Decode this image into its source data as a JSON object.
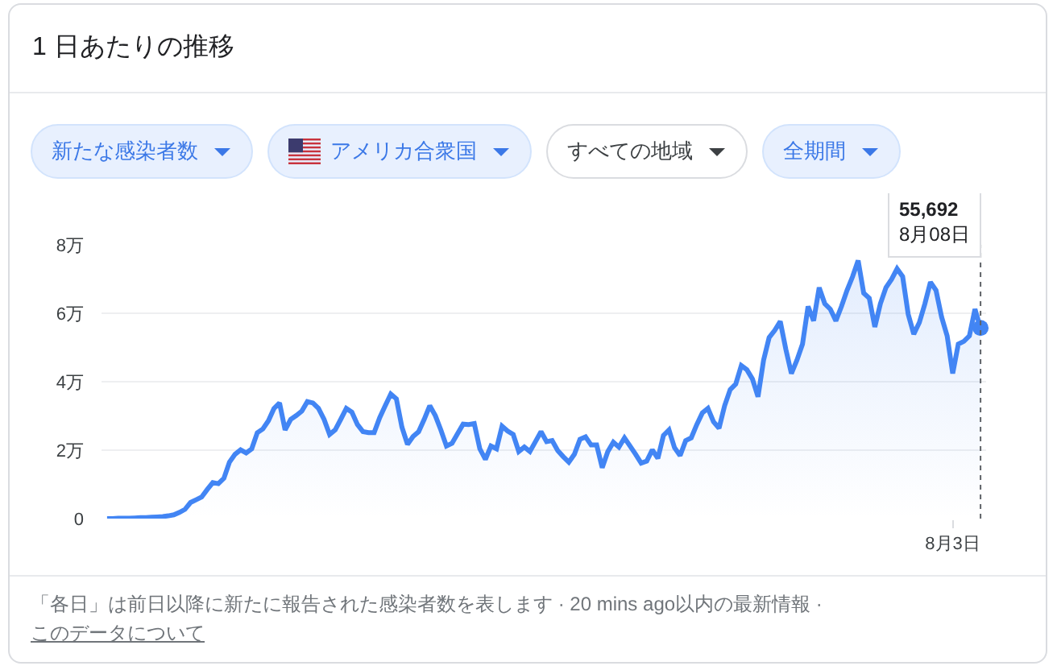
{
  "chart_data": {
    "type": "area",
    "title": "1 日あたりの推移",
    "categories": [
      null,
      null,
      null,
      null,
      null,
      null,
      null,
      null,
      null,
      null,
      null,
      null,
      null,
      null,
      null,
      null,
      null,
      null,
      null,
      null,
      null,
      null,
      null,
      null,
      null,
      null,
      null,
      null,
      null,
      null,
      null,
      null,
      null,
      null,
      null,
      null,
      null,
      null,
      null,
      null,
      null,
      null,
      null,
      null,
      null,
      null,
      null,
      null,
      null,
      null,
      null,
      null,
      null,
      null,
      null,
      null,
      null,
      null,
      null,
      null,
      null,
      null,
      null,
      null,
      null,
      null,
      null,
      null,
      null,
      null,
      null,
      null,
      null,
      null,
      null,
      null,
      null,
      null,
      null,
      null,
      null,
      null,
      null,
      null,
      null,
      null,
      null,
      null,
      null,
      null,
      null,
      null,
      null,
      null,
      null,
      null,
      null,
      null,
      null,
      null,
      null,
      null,
      null,
      null,
      null,
      null,
      null,
      null,
      null,
      null,
      null,
      null,
      null,
      null,
      null,
      null,
      null,
      null,
      null,
      null,
      null,
      null,
      null,
      null,
      null,
      null,
      null,
      null,
      null,
      null,
      null,
      null,
      null,
      null,
      null,
      null,
      null,
      null,
      null,
      null,
      null,
      null,
      null,
      null,
      null,
      null,
      null,
      null,
      null,
      null,
      null,
      null,
      "8月3日",
      null,
      null,
      null,
      null,
      null
    ],
    "series": [
      {
        "color": "#4285f4",
        "values": [
          0,
          0,
          0.01,
          0.01,
          0.01,
          0.02,
          0.03,
          0.03,
          0.04,
          0.05,
          0.06,
          0.08,
          0.11,
          0.18,
          0.27,
          0.47,
          0.55,
          0.63,
          0.85,
          1.05,
          1.02,
          1.18,
          1.65,
          1.88,
          2.01,
          1.92,
          2.04,
          2.51,
          2.62,
          2.86,
          3.22,
          3.38,
          2.59,
          2.9,
          3.01,
          3.14,
          3.42,
          3.38,
          3.22,
          2.9,
          2.46,
          2.59,
          2.9,
          3.22,
          3.11,
          2.75,
          2.54,
          2.51,
          2.51,
          2.95,
          3.3,
          3.64,
          3.5,
          2.67,
          2.17,
          2.4,
          2.54,
          2.9,
          3.3,
          3.01,
          2.59,
          2.12,
          2.2,
          2.48,
          2.76,
          2.75,
          2.78,
          2.04,
          1.73,
          2.12,
          2.04,
          2.7,
          2.56,
          2.46,
          1.96,
          2.09,
          1.96,
          2.25,
          2.54,
          2.25,
          2.28,
          1.99,
          1.81,
          1.65,
          1.88,
          2.32,
          2.39,
          2.15,
          2.15,
          1.49,
          1.96,
          2.23,
          2.09,
          2.36,
          2.12,
          1.88,
          1.62,
          1.68,
          2.01,
          1.76,
          2.43,
          2.59,
          2.07,
          1.84,
          2.28,
          2.36,
          2.75,
          3.09,
          3.22,
          2.83,
          2.64,
          3.3,
          3.77,
          3.93,
          4.47,
          4.35,
          4.08,
          3.56,
          4.63,
          5.29,
          5.5,
          5.76,
          4.95,
          4.24,
          4.63,
          5.1,
          6.2,
          5.78,
          6.75,
          6.28,
          6.12,
          5.78,
          6.2,
          6.67,
          7.07,
          7.54,
          6.59,
          6.44,
          5.6,
          6.28,
          6.75,
          6.99,
          7.3,
          7.07,
          5.97,
          5.39,
          5.73,
          6.28,
          6.91,
          6.67,
          5.89,
          5.34,
          4.24,
          5.1,
          5.18,
          5.34,
          6.12,
          5.5692
        ]
      },
      {
        "type": "scatter",
        "color": "#4285f4",
        "marker": "circle",
        "values": [
          null,
          null,
          null,
          null,
          null,
          null,
          null,
          null,
          null,
          null,
          null,
          null,
          null,
          null,
          null,
          null,
          null,
          null,
          null,
          null,
          null,
          null,
          null,
          null,
          null,
          null,
          null,
          null,
          null,
          null,
          null,
          null,
          null,
          null,
          null,
          null,
          null,
          null,
          null,
          null,
          null,
          null,
          null,
          null,
          null,
          null,
          null,
          null,
          null,
          null,
          null,
          null,
          null,
          null,
          null,
          null,
          null,
          null,
          null,
          null,
          null,
          null,
          null,
          null,
          null,
          null,
          null,
          null,
          null,
          null,
          null,
          null,
          null,
          null,
          null,
          null,
          null,
          null,
          null,
          null,
          null,
          null,
          null,
          null,
          null,
          null,
          null,
          null,
          null,
          null,
          null,
          null,
          null,
          null,
          null,
          null,
          null,
          null,
          null,
          null,
          null,
          null,
          null,
          null,
          null,
          null,
          null,
          null,
          null,
          null,
          null,
          null,
          null,
          null,
          null,
          null,
          null,
          null,
          null,
          null,
          null,
          null,
          null,
          null,
          null,
          null,
          null,
          null,
          null,
          null,
          null,
          null,
          null,
          null,
          null,
          null,
          null,
          null,
          null,
          null,
          null,
          null,
          null,
          null,
          null,
          null,
          null,
          null,
          null,
          null,
          null,
          null,
          null,
          null,
          null,
          null,
          null,
          5.5692
        ]
      }
    ],
    "ylim": [
      0,
      8
    ],
    "yticks": [
      0,
      {
        "value": 2,
        "label": "2万"
      },
      {
        "value": 4,
        "label": "4万"
      },
      {
        "value": 6,
        "label": "6万"
      },
      {
        "value": 8,
        "label": "8万"
      }
    ],
    "grid": "y",
    "annotations": [
      "55,692\n8月08日",
      "新たな感染者数",
      "アメリカ合衆国",
      "すべての地域",
      "全期間",
      "「各日」は前日以降に新たに報告された感染者数を表します · 20 mins ago以内の最新情報 ·",
      "このデータについて"
    ]
  }
}
